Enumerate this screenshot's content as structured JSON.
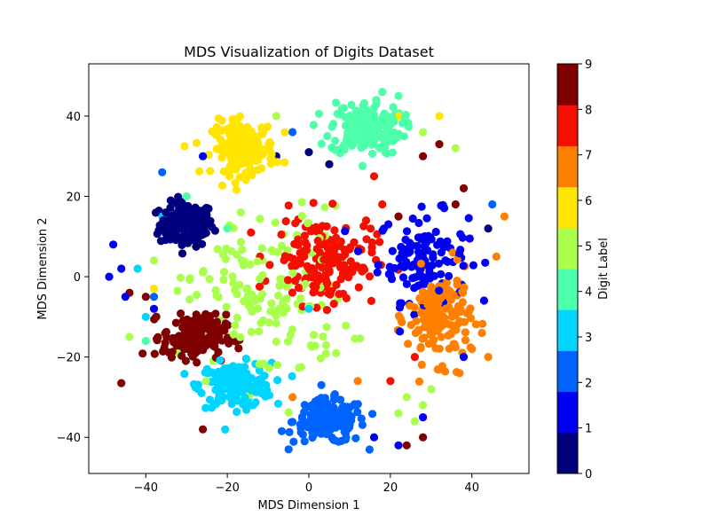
{
  "chart_data": {
    "type": "scatter",
    "title": "MDS Visualization of Digits Dataset",
    "xlabel": "MDS Dimension 1",
    "ylabel": "MDS Dimension 2",
    "xlim": [
      -54,
      54
    ],
    "ylim": [
      -49,
      53
    ],
    "xticks": [
      -40,
      -20,
      0,
      20,
      40
    ],
    "yticks": [
      -40,
      -20,
      0,
      20,
      40
    ],
    "grid": false,
    "colorbar": {
      "label": "Digit Label",
      "ticks": [
        0,
        1,
        2,
        3,
        4,
        5,
        6,
        7,
        8,
        9
      ],
      "range": [
        0,
        9
      ],
      "colormap": "jet",
      "colors": [
        "#00007f",
        "#0000f5",
        "#0063ff",
        "#00d5ff",
        "#4dffaa",
        "#aaff4d",
        "#ffe500",
        "#ff7f00",
        "#f50f00",
        "#7f0000"
      ]
    },
    "clusters": [
      {
        "digit": 0,
        "center": [
          -30,
          13
        ],
        "spread": [
          6,
          5
        ],
        "count": 170
      },
      {
        "digit": 1,
        "center": [
          28,
          5
        ],
        "spread": [
          10,
          10
        ],
        "count": 120
      },
      {
        "digit": 2,
        "center": [
          5,
          -36
        ],
        "spread": [
          8,
          5
        ],
        "count": 170
      },
      {
        "digit": 3,
        "center": [
          -18,
          -27
        ],
        "spread": [
          8,
          5
        ],
        "count": 170
      },
      {
        "digit": 4,
        "center": [
          14,
          37
        ],
        "spread": [
          8,
          6
        ],
        "count": 170
      },
      {
        "digit": 5,
        "center": [
          -10,
          -5
        ],
        "spread": [
          18,
          20
        ],
        "count": 160
      },
      {
        "digit": 6,
        "center": [
          -16,
          32
        ],
        "spread": [
          7,
          6
        ],
        "count": 170
      },
      {
        "digit": 7,
        "center": [
          32,
          -10
        ],
        "spread": [
          7,
          10
        ],
        "count": 170
      },
      {
        "digit": 8,
        "center": [
          4,
          4
        ],
        "spread": [
          11,
          10
        ],
        "count": 170
      },
      {
        "digit": 9,
        "center": [
          -28,
          -15
        ],
        "spread": [
          7,
          5
        ],
        "count": 170
      }
    ],
    "stragglers": [
      {
        "digit": 9,
        "points": [
          [
            -46,
            -26.5
          ],
          [
            -26,
            -38
          ],
          [
            -40,
            -5
          ],
          [
            -44,
            -4
          ],
          [
            22,
            15
          ],
          [
            28,
            30
          ],
          [
            32,
            33
          ],
          [
            38,
            22
          ],
          [
            24,
            -42
          ],
          [
            28,
            -40
          ],
          [
            -22,
            -30
          ],
          [
            36,
            18
          ]
        ]
      },
      {
        "digit": 1,
        "points": [
          [
            -49,
            0
          ],
          [
            -48,
            8
          ],
          [
            -45,
            -5
          ],
          [
            -46,
            2
          ],
          [
            22,
            -42
          ],
          [
            16,
            -40
          ],
          [
            -26,
            30
          ],
          [
            28,
            -35
          ],
          [
            38,
            -20
          ],
          [
            -38,
            -8
          ]
        ]
      },
      {
        "digit": 0,
        "points": [
          [
            5,
            28
          ],
          [
            -8,
            30
          ],
          [
            44,
            12
          ],
          [
            0,
            31
          ]
        ]
      },
      {
        "digit": 3,
        "points": [
          [
            -42,
            2
          ],
          [
            -40,
            -10
          ],
          [
            -36,
            15
          ],
          [
            0,
            -8
          ]
        ]
      },
      {
        "digit": 2,
        "points": [
          [
            -36,
            26
          ],
          [
            -38,
            -5
          ],
          [
            45,
            18
          ],
          [
            -4,
            36
          ]
        ]
      },
      {
        "digit": 5,
        "points": [
          [
            24,
            -30
          ],
          [
            26,
            -36
          ],
          [
            28,
            -32
          ],
          [
            30,
            -28
          ],
          [
            22,
            -34
          ],
          [
            -44,
            -15
          ],
          [
            -38,
            4
          ],
          [
            -8,
            40
          ],
          [
            36,
            32
          ],
          [
            28,
            36
          ]
        ]
      },
      {
        "digit": 7,
        "points": [
          [
            48,
            15
          ],
          [
            46,
            5
          ],
          [
            44,
            -20
          ],
          [
            -4,
            -30
          ],
          [
            12,
            -26
          ],
          [
            40,
            -18
          ],
          [
            37,
            -24
          ]
        ]
      },
      {
        "digit": 4,
        "points": [
          [
            -30,
            20
          ],
          [
            22,
            45
          ],
          [
            18,
            46
          ],
          [
            -40,
            -16
          ],
          [
            -20,
            12
          ]
        ]
      },
      {
        "digit": 6,
        "points": [
          [
            22,
            40
          ],
          [
            -38,
            -3
          ],
          [
            5,
            -2
          ],
          [
            32,
            40
          ]
        ]
      },
      {
        "digit": 8,
        "points": [
          [
            20,
            -26
          ],
          [
            26,
            -20
          ],
          [
            -12,
            5
          ],
          [
            18,
            18
          ],
          [
            16,
            25
          ]
        ]
      }
    ]
  }
}
